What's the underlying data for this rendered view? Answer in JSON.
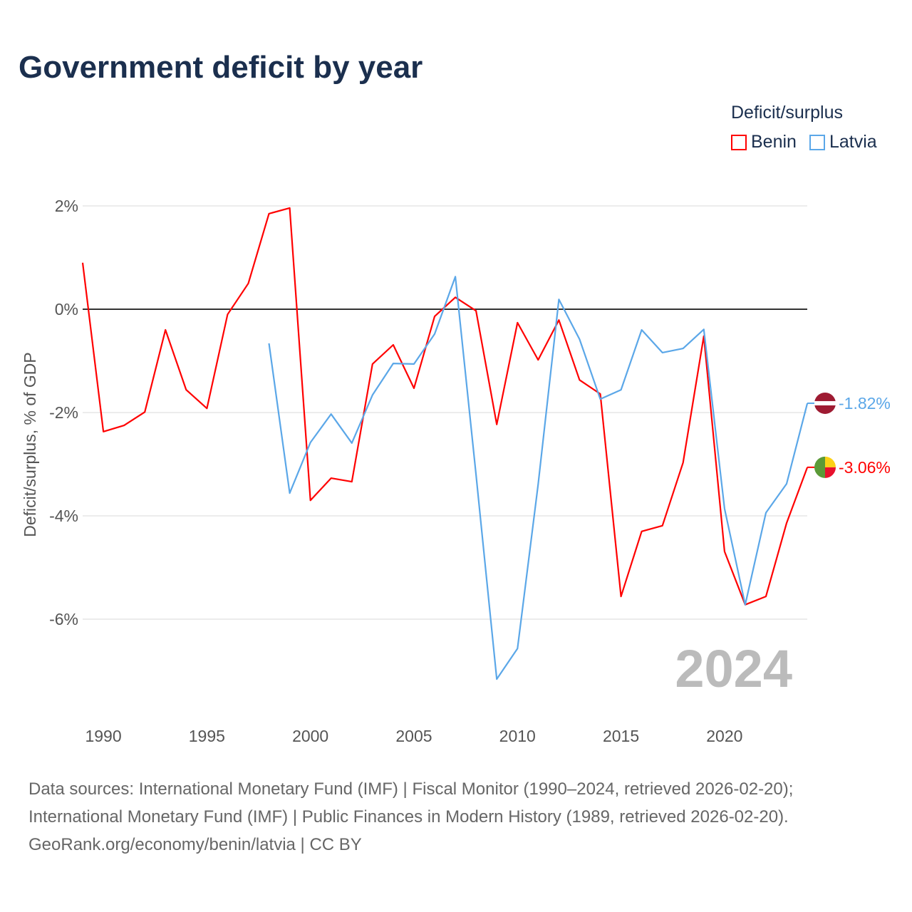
{
  "title": "Government deficit by year",
  "legend": {
    "title": "Deficit/surplus",
    "items": [
      {
        "name": "Benin",
        "color": "#ff0000"
      },
      {
        "name": "Latvia",
        "color": "#5ba7e8"
      }
    ]
  },
  "source_lines": [
    "Data sources: International Monetary Fund (IMF) | Fiscal Monitor (1990–2024, retrieved 2026-02-20);",
    "International Monetary Fund (IMF) | Public Finances in Modern History (1989, retrieved 2026-02-20).",
    "GeoRank.org/economy/benin/latvia | CC BY"
  ],
  "chart_data": {
    "type": "line",
    "title": "Government deficit by year",
    "ylabel": "Deficit/surplus, % of GDP",
    "xlabel": "",
    "xlim": [
      1989,
      2024
    ],
    "ylim": [
      -7.6,
      2.3
    ],
    "x_ticks": [
      1990,
      1995,
      2000,
      2005,
      2010,
      2015,
      2020
    ],
    "y_ticks": [
      {
        "v": 2,
        "label": "2%"
      },
      {
        "v": 0,
        "label": "0%"
      },
      {
        "v": -2,
        "label": "-2%"
      },
      {
        "v": -4,
        "label": "-4%"
      },
      {
        "v": -6,
        "label": "-6%"
      }
    ],
    "year_watermark": "2024",
    "series": [
      {
        "name": "Benin",
        "color": "#ff0000",
        "end_label": "-3.06%",
        "start": 1989,
        "values": [
          0.9,
          -2.37,
          -2.25,
          -1.99,
          -0.4,
          -1.56,
          -1.92,
          -0.1,
          0.5,
          1.85,
          1.96,
          -3.7,
          -3.27,
          -3.34,
          -1.06,
          -0.69,
          -1.53,
          -0.14,
          0.23,
          -0.03,
          -2.23,
          -0.26,
          -0.98,
          -0.21,
          -1.37,
          -1.64,
          -5.56,
          -4.3,
          -4.19,
          -2.97,
          -0.52,
          -4.69,
          -5.72,
          -5.56,
          -4.14,
          -3.06
        ]
      },
      {
        "name": "Latvia",
        "color": "#5ba7e8",
        "end_label": "-1.82%",
        "start": 1998,
        "values": [
          -0.66,
          -3.56,
          -2.58,
          -2.03,
          -2.59,
          -1.66,
          -1.05,
          -1.06,
          -0.48,
          0.63,
          -3.2,
          -7.16,
          -6.57,
          -3.39,
          0.19,
          -0.58,
          -1.74,
          -1.56,
          -0.4,
          -0.84,
          -0.76,
          -0.39,
          -3.86,
          -5.72,
          -3.94,
          -3.38,
          -1.82
        ]
      }
    ]
  }
}
